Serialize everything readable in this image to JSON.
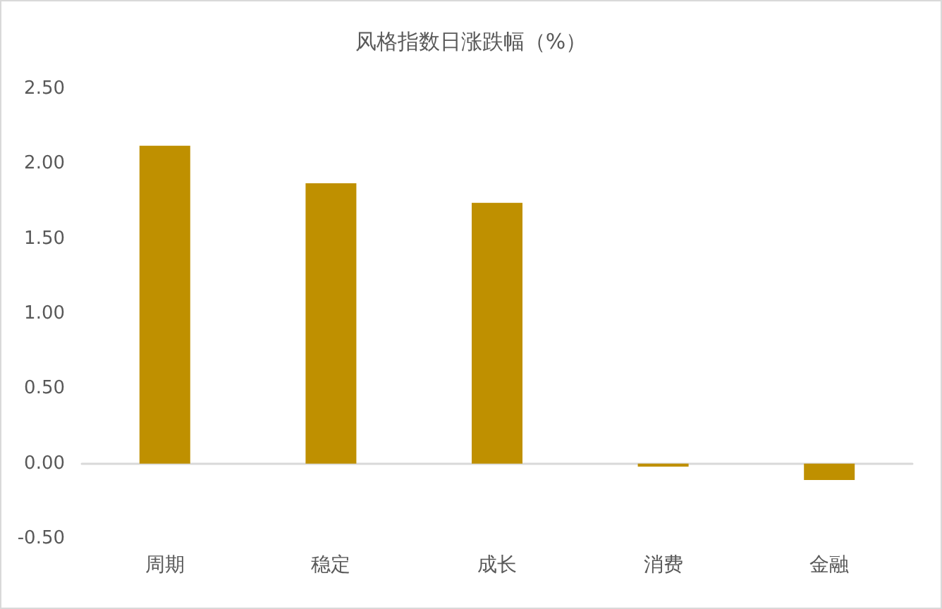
{
  "chart_data": {
    "type": "bar",
    "title": "风格指数日涨跌幅（%）",
    "categories": [
      "周期",
      "稳定",
      "成长",
      "消费",
      "金融"
    ],
    "values": [
      2.12,
      1.87,
      1.74,
      -0.02,
      -0.11
    ],
    "color": "#bf9000",
    "ylim": [
      -0.5,
      2.5
    ],
    "yticks": [
      {
        "value": -0.5,
        "label": "-0.50"
      },
      {
        "value": 0,
        "label": "0.00"
      },
      {
        "value": 0.5,
        "label": "0.50"
      },
      {
        "value": 1,
        "label": "1.00"
      },
      {
        "value": 1.5,
        "label": "1.50"
      },
      {
        "value": 2,
        "label": "2.00"
      },
      {
        "value": 2.5,
        "label": "2.50"
      }
    ]
  }
}
